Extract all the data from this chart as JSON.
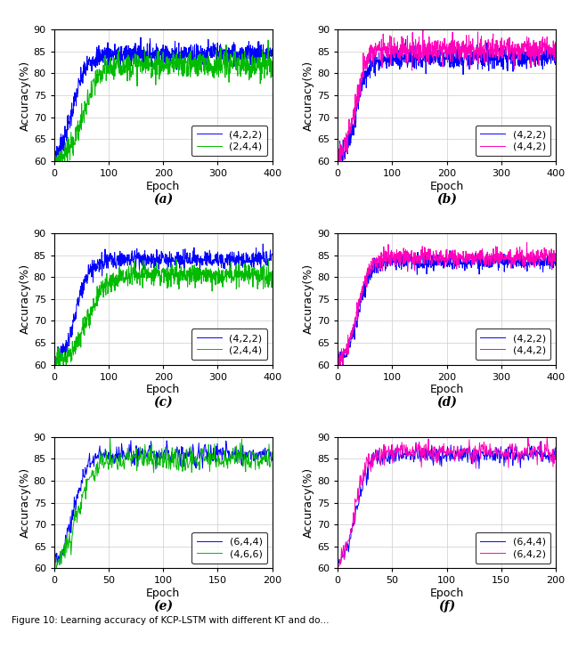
{
  "subplots": [
    {
      "label": "(a)",
      "series": [
        {
          "legend": "(4,2,2)",
          "color": "#0000FF",
          "end": 84.5,
          "inflect": 35,
          "steepness": 0.08,
          "noise": 1.3
        },
        {
          "legend": "(2,4,4)",
          "color": "#00BB00",
          "end": 82.0,
          "inflect": 55,
          "steepness": 0.07,
          "noise": 1.5
        }
      ],
      "xlim": [
        0,
        400
      ],
      "xticks": [
        0,
        100,
        200,
        300,
        400
      ],
      "ylim": [
        60,
        90
      ],
      "yticks": [
        60,
        65,
        70,
        75,
        80,
        85,
        90
      ],
      "xlabel": "Epoch",
      "ylabel": "Accuracy(%)",
      "n_points": 400
    },
    {
      "label": "(b)",
      "series": [
        {
          "legend": "(4,2,2)",
          "color": "#0000FF",
          "end": 83.5,
          "inflect": 35,
          "steepness": 0.1,
          "noise": 1.2
        },
        {
          "legend": "(4,4,2)",
          "color": "#FF00BB",
          "end": 85.5,
          "inflect": 33,
          "steepness": 0.1,
          "noise": 1.5
        }
      ],
      "xlim": [
        0,
        400
      ],
      "xticks": [
        0,
        100,
        200,
        300,
        400
      ],
      "ylim": [
        60,
        90
      ],
      "yticks": [
        60,
        65,
        70,
        75,
        80,
        85,
        90
      ],
      "xlabel": "Epoch",
      "ylabel": "Accuracy(%)",
      "n_points": 400
    },
    {
      "label": "(c)",
      "series": [
        {
          "legend": "(4,2,2)",
          "color": "#0000FF",
          "end": 84.0,
          "inflect": 40,
          "steepness": 0.08,
          "noise": 1.0
        },
        {
          "legend": "(2,4,4)",
          "color": "#00BB00",
          "end": 80.5,
          "inflect": 60,
          "steepness": 0.06,
          "noise": 1.2
        }
      ],
      "xlim": [
        0,
        400
      ],
      "xticks": [
        0,
        100,
        200,
        300,
        400
      ],
      "ylim": [
        60,
        90
      ],
      "yticks": [
        60,
        65,
        70,
        75,
        80,
        85,
        90
      ],
      "xlabel": "Epoch",
      "ylabel": "Accuracy(%)",
      "n_points": 400
    },
    {
      "label": "(d)",
      "series": [
        {
          "legend": "(4,2,2)",
          "color": "#0000FF",
          "end": 83.5,
          "inflect": 38,
          "steepness": 0.09,
          "noise": 0.9
        },
        {
          "legend": "(4,4,2)",
          "color": "#FF00BB",
          "end": 84.5,
          "inflect": 36,
          "steepness": 0.09,
          "noise": 1.0
        }
      ],
      "xlim": [
        0,
        400
      ],
      "xticks": [
        0,
        100,
        200,
        300,
        400
      ],
      "ylim": [
        60,
        90
      ],
      "yticks": [
        60,
        65,
        70,
        75,
        80,
        85,
        90
      ],
      "xlabel": "Epoch",
      "ylabel": "Accuracy(%)",
      "n_points": 400
    },
    {
      "label": "(e)",
      "series": [
        {
          "legend": "(6,4,4)",
          "color": "#0000FF",
          "end": 86.0,
          "inflect": 18,
          "steepness": 0.16,
          "noise": 1.2
        },
        {
          "legend": "(4,6,6)",
          "color": "#00BB00",
          "end": 85.0,
          "inflect": 22,
          "steepness": 0.14,
          "noise": 1.5
        }
      ],
      "xlim": [
        0,
        200
      ],
      "xticks": [
        0,
        50,
        100,
        150,
        200
      ],
      "ylim": [
        60,
        90
      ],
      "yticks": [
        60,
        65,
        70,
        75,
        80,
        85,
        90
      ],
      "xlabel": "Epoch",
      "ylabel": "Accuracy(%)",
      "n_points": 200
    },
    {
      "label": "(f)",
      "series": [
        {
          "legend": "(6,4,4)",
          "color": "#0000FF",
          "end": 86.0,
          "inflect": 17,
          "steepness": 0.18,
          "noise": 1.0
        },
        {
          "legend": "(6,4,2)",
          "color": "#FF00BB",
          "end": 86.5,
          "inflect": 16,
          "steepness": 0.18,
          "noise": 1.2
        }
      ],
      "xlim": [
        0,
        200
      ],
      "xticks": [
        0,
        50,
        100,
        150,
        200
      ],
      "ylim": [
        60,
        90
      ],
      "yticks": [
        60,
        65,
        70,
        75,
        80,
        85,
        90
      ],
      "xlabel": "Epoch",
      "ylabel": "Accuracy(%)",
      "n_points": 200
    }
  ],
  "caption": "Figure 10: Learning accuracy of KCP-LSTM with different KT and do...",
  "grid_color": "#CCCCCC",
  "bg_color": "#FFFFFF"
}
